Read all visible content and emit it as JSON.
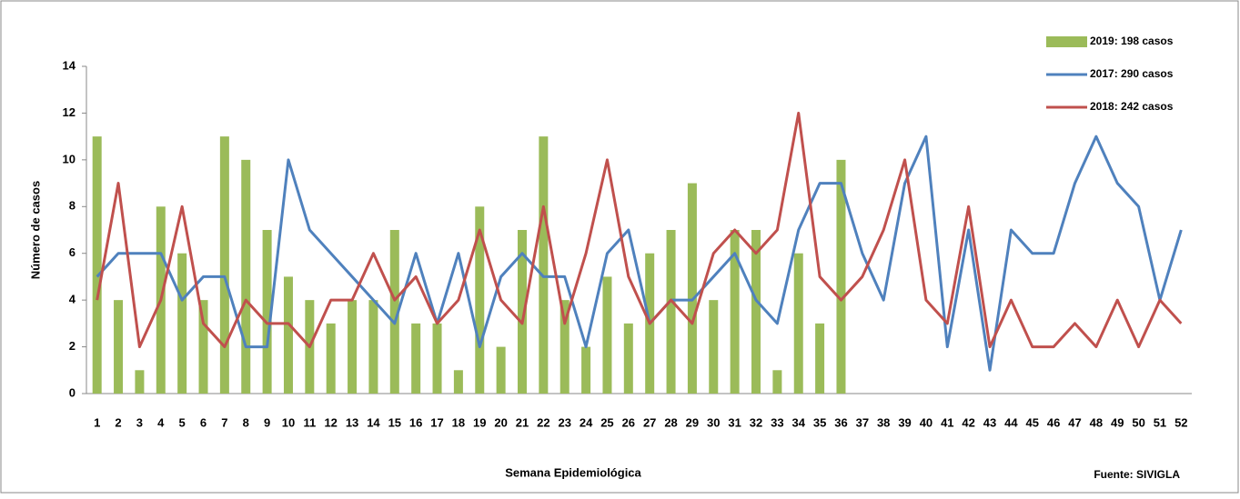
{
  "chart_data": {
    "type": "bar-line",
    "x_label": "Semana Epidemiológica",
    "y_label": "Número de casos",
    "source": "Fuente: SIVIGLA",
    "categories": [
      "1",
      "2",
      "3",
      "4",
      "5",
      "6",
      "7",
      "8",
      "9",
      "10",
      "11",
      "12",
      "13",
      "14",
      "15",
      "16",
      "17",
      "18",
      "19",
      "20",
      "21",
      "22",
      "23",
      "24",
      "25",
      "26",
      "27",
      "28",
      "29",
      "30",
      "31",
      "32",
      "33",
      "34",
      "35",
      "36",
      "37",
      "38",
      "39",
      "40",
      "41",
      "42",
      "43",
      "44",
      "45",
      "46",
      "47",
      "48",
      "49",
      "50",
      "51",
      "52"
    ],
    "series": [
      {
        "name": "2019: 198 casos",
        "kind": "bar",
        "color": "#9bbb59",
        "values": [
          11,
          4,
          1,
          8,
          6,
          4,
          11,
          10,
          7,
          5,
          4,
          3,
          4,
          4,
          7,
          3,
          3,
          1,
          8,
          2,
          7,
          11,
          4,
          2,
          5,
          3,
          6,
          7,
          9,
          4,
          7,
          7,
          1,
          6,
          3,
          10,
          null,
          null,
          null,
          null,
          null,
          null,
          null,
          null,
          null,
          null,
          null,
          null,
          null,
          null,
          null,
          null
        ]
      },
      {
        "name": "2017: 290 casos",
        "kind": "line",
        "color": "#4f81bd",
        "values": [
          5,
          6,
          6,
          6,
          4,
          5,
          5,
          2,
          2,
          10,
          7,
          6,
          5,
          4,
          3,
          6,
          3,
          6,
          2,
          5,
          6,
          5,
          5,
          2,
          6,
          7,
          3,
          4,
          4,
          5,
          6,
          4,
          3,
          7,
          9,
          9,
          6,
          4,
          9,
          11,
          2,
          7,
          1,
          7,
          6,
          6,
          9,
          11,
          9,
          8,
          4,
          7
        ]
      },
      {
        "name": "2018: 242 casos",
        "kind": "line",
        "color": "#c0504d",
        "values": [
          4,
          9,
          2,
          4,
          8,
          3,
          2,
          4,
          3,
          3,
          2,
          4,
          4,
          6,
          4,
          5,
          3,
          4,
          7,
          4,
          3,
          8,
          3,
          6,
          10,
          5,
          3,
          4,
          3,
          6,
          7,
          6,
          7,
          12,
          5,
          4,
          5,
          7,
          10,
          4,
          3,
          8,
          2,
          4,
          2,
          2,
          3,
          2,
          4,
          2,
          4,
          3
        ]
      }
    ],
    "ylim": [
      0,
      14
    ],
    "yticks": [
      0,
      2,
      4,
      6,
      8,
      10,
      12,
      14
    ],
    "grid": false,
    "legend": "top-right"
  }
}
